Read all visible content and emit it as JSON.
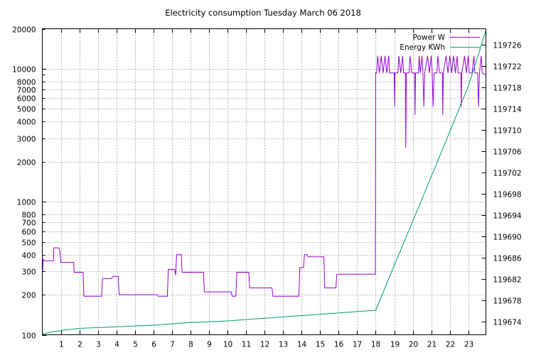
{
  "chart_data": {
    "type": "line",
    "title": "Electricity consumption Tuesday March 06 2018",
    "xlabel": "",
    "ylabel": "",
    "y2label": "",
    "x_ticks": [
      1,
      2,
      3,
      4,
      5,
      6,
      7,
      8,
      9,
      10,
      11,
      12,
      13,
      14,
      15,
      16,
      17,
      18,
      19,
      20,
      21,
      22,
      23
    ],
    "xlim": [
      0,
      23.95
    ],
    "y_scale": "log",
    "ylim": [
      100,
      20000
    ],
    "y_ticks": [
      100,
      200,
      300,
      400,
      500,
      600,
      700,
      800,
      1000,
      2000,
      3000,
      4000,
      5000,
      6000,
      7000,
      8000,
      10000,
      20000
    ],
    "y2lim": [
      119671.6,
      119729
    ],
    "y2_ticks": [
      119674,
      119678,
      119682,
      119686,
      119690,
      119694,
      119698,
      119702,
      119706,
      119710,
      119714,
      119718,
      119722,
      119726
    ],
    "grid": true,
    "legend_position": "top-right",
    "series": [
      {
        "name": "Power W",
        "axis": "y",
        "color": "#9400d3",
        "points": [
          [
            0,
            280
          ],
          [
            0.05,
            370
          ],
          [
            0.1,
            360
          ],
          [
            0.6,
            360
          ],
          [
            0.62,
            450
          ],
          [
            0.9,
            450
          ],
          [
            0.95,
            420
          ],
          [
            1.0,
            350
          ],
          [
            1.7,
            350
          ],
          [
            1.72,
            295
          ],
          [
            2.2,
            295
          ],
          [
            2.25,
            195
          ],
          [
            3.2,
            195
          ],
          [
            3.25,
            265
          ],
          [
            3.75,
            265
          ],
          [
            3.8,
            275
          ],
          [
            4.1,
            275
          ],
          [
            4.15,
            200
          ],
          [
            6.2,
            200
          ],
          [
            6.25,
            195
          ],
          [
            6.75,
            195
          ],
          [
            6.8,
            310
          ],
          [
            7.15,
            310
          ],
          [
            7.2,
            280
          ],
          [
            7.25,
            400
          ],
          [
            7.5,
            400
          ],
          [
            7.55,
            295
          ],
          [
            8.7,
            295
          ],
          [
            8.75,
            210
          ],
          [
            10.2,
            210
          ],
          [
            10.25,
            195
          ],
          [
            10.45,
            195
          ],
          [
            10.5,
            295
          ],
          [
            11.15,
            295
          ],
          [
            11.2,
            225
          ],
          [
            12.4,
            225
          ],
          [
            12.45,
            195
          ],
          [
            13.85,
            195
          ],
          [
            13.9,
            320
          ],
          [
            14.1,
            320
          ],
          [
            14.15,
            400
          ],
          [
            14.3,
            400
          ],
          [
            14.35,
            385
          ],
          [
            15.2,
            385
          ],
          [
            15.25,
            225
          ],
          [
            15.85,
            225
          ],
          [
            15.9,
            285
          ],
          [
            17.98,
            285
          ],
          [
            18.0,
            9300
          ],
          [
            18.05,
            9300
          ],
          [
            18.1,
            12500
          ],
          [
            18.2,
            9300
          ],
          [
            18.3,
            12500
          ],
          [
            18.4,
            9300
          ],
          [
            18.5,
            12500
          ],
          [
            18.6,
            9300
          ],
          [
            18.7,
            12500
          ],
          [
            18.75,
            9300
          ],
          [
            19.0,
            9300
          ],
          [
            19.02,
            5200
          ],
          [
            19.04,
            9300
          ],
          [
            19.2,
            9300
          ],
          [
            19.25,
            12500
          ],
          [
            19.35,
            9300
          ],
          [
            19.45,
            12500
          ],
          [
            19.5,
            9300
          ],
          [
            19.6,
            9300
          ],
          [
            19.62,
            2550
          ],
          [
            19.65,
            9300
          ],
          [
            19.8,
            9300
          ],
          [
            19.85,
            12500
          ],
          [
            19.95,
            9300
          ],
          [
            20.1,
            9300
          ],
          [
            20.12,
            4500
          ],
          [
            20.15,
            9300
          ],
          [
            20.3,
            9300
          ],
          [
            20.35,
            12500
          ],
          [
            20.4,
            9300
          ],
          [
            20.5,
            12500
          ],
          [
            20.55,
            9300
          ],
          [
            20.6,
            5200
          ],
          [
            20.65,
            9300
          ],
          [
            20.8,
            12500
          ],
          [
            20.9,
            9300
          ],
          [
            21.0,
            12500
          ],
          [
            21.05,
            9300
          ],
          [
            21.1,
            5200
          ],
          [
            21.15,
            9300
          ],
          [
            21.3,
            9300
          ],
          [
            21.35,
            12500
          ],
          [
            21.45,
            9300
          ],
          [
            21.6,
            9300
          ],
          [
            21.62,
            4500
          ],
          [
            21.65,
            9300
          ],
          [
            21.8,
            12500
          ],
          [
            21.9,
            9300
          ],
          [
            22.0,
            12500
          ],
          [
            22.1,
            9300
          ],
          [
            22.2,
            12500
          ],
          [
            22.3,
            9300
          ],
          [
            22.4,
            12500
          ],
          [
            22.45,
            9300
          ],
          [
            22.6,
            9300
          ],
          [
            22.62,
            5200
          ],
          [
            22.65,
            9300
          ],
          [
            22.8,
            12500
          ],
          [
            22.9,
            9300
          ],
          [
            23.0,
            12500
          ],
          [
            23.05,
            9300
          ],
          [
            23.2,
            9300
          ],
          [
            23.3,
            12500
          ],
          [
            23.35,
            9300
          ],
          [
            23.5,
            9300
          ],
          [
            23.55,
            5200
          ],
          [
            23.6,
            9300
          ],
          [
            23.7,
            12500
          ],
          [
            23.75,
            9300
          ],
          [
            23.95,
            9000
          ]
        ]
      },
      {
        "name": "Energy KWh",
        "axis": "y2",
        "color": "#009e73",
        "points": [
          [
            0,
            119671.8
          ],
          [
            1.2,
            119672.5
          ],
          [
            2,
            119672.8
          ],
          [
            4,
            119673.1
          ],
          [
            6,
            119673.4
          ],
          [
            8,
            119673.9
          ],
          [
            10,
            119674.2
          ],
          [
            12,
            119674.7
          ],
          [
            14,
            119675.2
          ],
          [
            16,
            119675.7
          ],
          [
            18,
            119676.2
          ],
          [
            19,
            119684.6
          ],
          [
            20,
            119692.9
          ],
          [
            21,
            119701.3
          ],
          [
            22,
            119709.7
          ],
          [
            23,
            119718.2
          ],
          [
            23.95,
            119728.7
          ]
        ]
      }
    ]
  }
}
